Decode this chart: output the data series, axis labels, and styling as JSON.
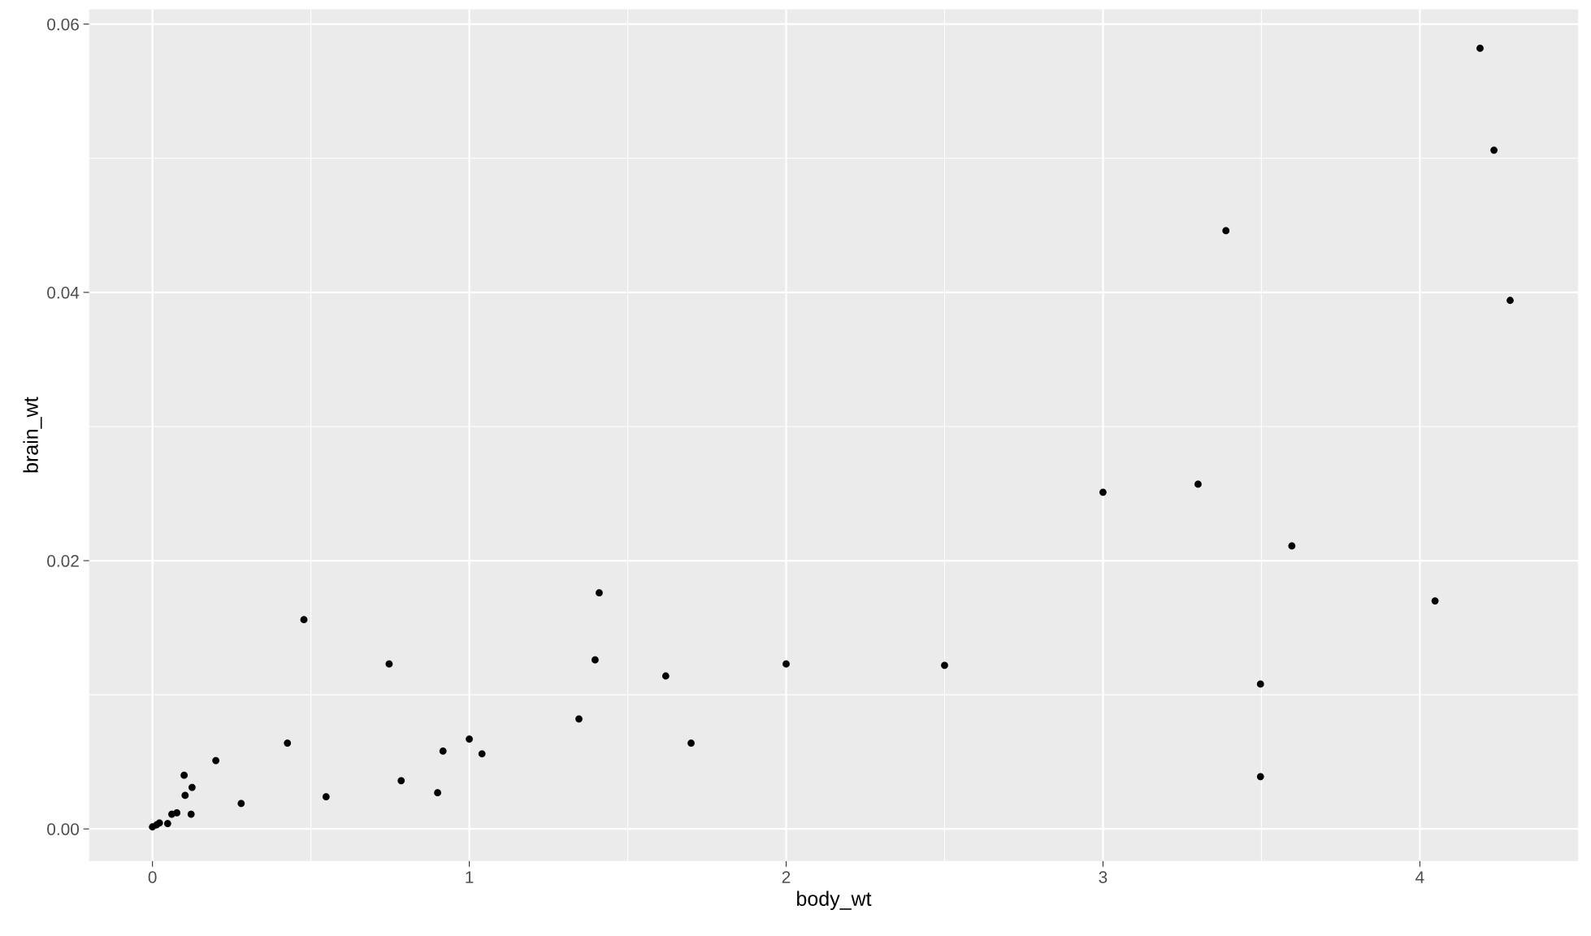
{
  "chart_data": {
    "type": "scatter",
    "xlabel": "body_wt",
    "ylabel": "brain_wt",
    "x": [
      0,
      0.013,
      0.022,
      0.048,
      0.061,
      0.077,
      0.1,
      0.103,
      0.125,
      0.122,
      0.2,
      0.28,
      0.426,
      0.478,
      0.548,
      0.747,
      0.785,
      0.9,
      0.917,
      1.0,
      1.04,
      1.346,
      1.397,
      1.41,
      1.62,
      1.7,
      2.0,
      2.5,
      3.0,
      3.3,
      3.388,
      3.497,
      3.497,
      3.596,
      4.048,
      4.19,
      4.234,
      4.285
    ],
    "series": [
      {
        "color": "#000000",
        "values": [
          0.00015,
          0.0003,
          0.00045,
          0.0004,
          0.0011,
          0.0012,
          0.004,
          0.0025,
          0.0031,
          0.0011,
          0.0051,
          0.0019,
          0.0064,
          0.0156,
          0.0024,
          0.0123,
          0.0036,
          0.0027,
          0.0058,
          0.0067,
          0.0056,
          0.0082,
          0.0126,
          0.0176,
          0.0114,
          0.0064,
          0.0123,
          0.0122,
          0.0251,
          0.0257,
          0.0446,
          0.0108,
          0.0039,
          0.0211,
          0.017,
          0.0582,
          0.0506,
          0.0394
        ]
      }
    ],
    "xlim": [
      -0.2,
      4.5
    ],
    "ylim": [
      -0.0024,
      0.0611
    ],
    "xticks": [
      0,
      1,
      2,
      3,
      4
    ],
    "yticks": [
      {
        "value": 0,
        "label": "0.00"
      },
      {
        "value": 0.02,
        "label": "0.02"
      },
      {
        "value": 0.04,
        "label": "0.04"
      },
      {
        "value": 0.06,
        "label": "0.06"
      }
    ],
    "grid": true,
    "marker": "circle",
    "legend": false
  }
}
